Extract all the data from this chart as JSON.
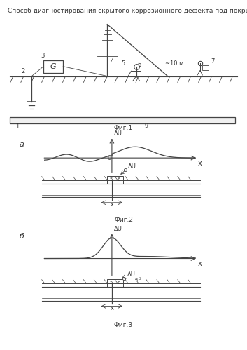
{
  "title": "Способ диагностирования скрытого коррозионного дефекта под покрытием.",
  "title_fontsize": 6.5,
  "fig1_label": "Фиг.1",
  "fig2_label": "Фиг.2",
  "fig3_label": "Фиг.3",
  "fig_label_fontsize": 6.5,
  "annotation_fontsize": 6,
  "bg_color": "#ffffff",
  "line_color": "#444444",
  "label_a": "а",
  "label_b": "б",
  "dist_label": "~10 м",
  "delta_u": "ΔU",
  "x_label": "x",
  "label_G": "G",
  "sketch_color": "#333333"
}
